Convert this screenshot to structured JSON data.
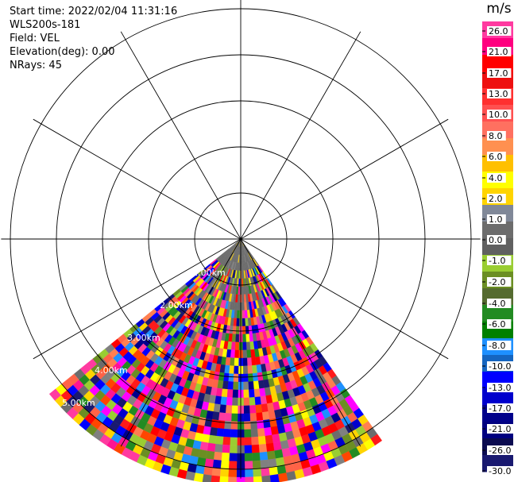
{
  "info": {
    "start_time": "Start time: 2022/02/04 11:31:16",
    "station": "WLS200s-181",
    "field": "Field: VEL",
    "elevation": "Elevation(deg): 0.00",
    "nrays": "NRays: 45"
  },
  "range_rings": [
    "1.00km",
    "2.00km",
    "3.00km",
    "4.00km",
    "5.00km"
  ],
  "colorbar": {
    "unit": "m/s",
    "ticks": [
      "26.0",
      "21.0",
      "17.0",
      "13.0",
      "10.0",
      "8.0",
      "6.0",
      "4.0",
      "2.0",
      "1.0",
      "0.0",
      "-1.0",
      "-2.0",
      "-4.0",
      "-6.0",
      "-8.0",
      "-10.0",
      "-13.0",
      "-17.0",
      "-21.0",
      "-26.0",
      "-30.0"
    ],
    "colors": [
      "#ff3aa0",
      "#ff007f",
      "#ff0000",
      "#ee1010",
      "#ff3030",
      "#ff5050",
      "#ff7060",
      "#ff9050",
      "#ffc000",
      "#ffff00",
      "#ffd400",
      "#808898",
      "#6c6c6c",
      "#606060",
      "#9acd32",
      "#6b8e23",
      "#556b2f",
      "#228b22",
      "#008000",
      "#1e90ff",
      "#1565c0",
      "#0000ff",
      "#0000cd",
      "#00008b",
      "#000080",
      "#0b0b50",
      "#191970"
    ]
  },
  "palette": [
    "#ff00ff",
    "#ff1493",
    "#ff3aa0",
    "#ff0000",
    "#ff4500",
    "#ff6347",
    "#ffff00",
    "#ffd400",
    "#0000ff",
    "#0000cd",
    "#00008b",
    "#191970",
    "#1e90ff",
    "#228b22",
    "#9acd32",
    "#6b8e23",
    "#808080",
    "#6c6c6c",
    "#ff7f50",
    "#ff1a1a"
  ]
}
